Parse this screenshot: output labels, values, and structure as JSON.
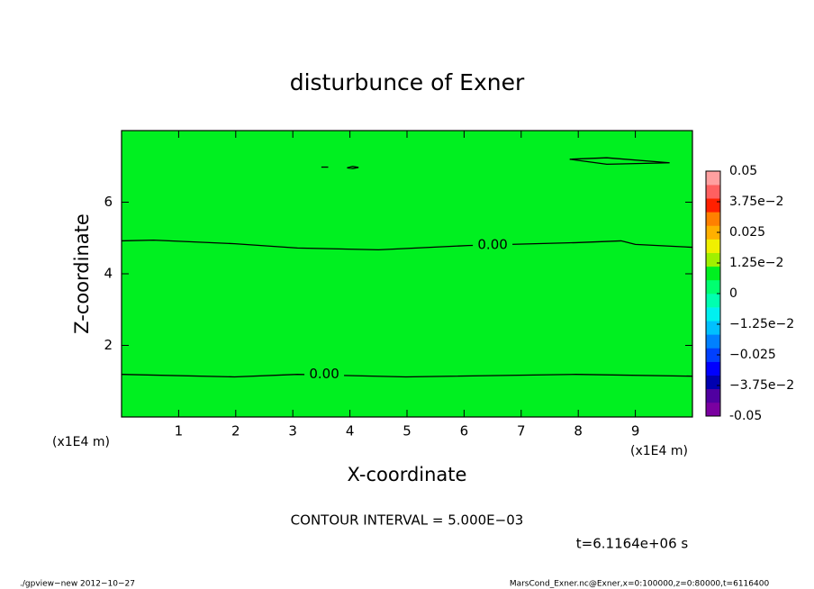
{
  "chart_data": {
    "type": "contour",
    "title": "disturbunce of Exner",
    "x_label": "X-coordinate",
    "y_label": "Z-coordinate",
    "x_unit_label": "(x1E4 m)",
    "xlim": [
      0,
      10
    ],
    "ylim": [
      0,
      8
    ],
    "xticks": [
      1,
      2,
      3,
      4,
      5,
      6,
      7,
      8,
      9
    ],
    "yticks": [
      2,
      4,
      6
    ],
    "field_color": "#00f020",
    "contours": [
      {
        "label": "0.00",
        "label_x": 6.5,
        "label_y": 4.8,
        "x": [
          0,
          0.56,
          1.98,
          3.08,
          4.5,
          6.07,
          7.96,
          8.75,
          9.0,
          10
        ],
        "y": [
          4.92,
          4.94,
          4.84,
          4.72,
          4.67,
          4.79,
          4.87,
          4.92,
          4.82,
          4.74
        ]
      },
      {
        "label": "0.00",
        "label_x": 3.55,
        "label_y": 1.2,
        "x": [
          0,
          1.98,
          3.08,
          4.98,
          7.96,
          10
        ],
        "y": [
          1.19,
          1.12,
          1.19,
          1.12,
          1.19,
          1.14
        ]
      },
      {
        "x": [
          7.85,
          8.5,
          9.6,
          8.5,
          7.85
        ],
        "y": [
          7.2,
          7.24,
          7.1,
          7.06,
          7.2
        ]
      },
      {
        "x": [
          3.5,
          3.62
        ],
        "y": [
          6.98,
          6.98
        ]
      },
      {
        "x": [
          3.95,
          4.05,
          4.15,
          4.05,
          3.95
        ],
        "y": [
          6.96,
          7.0,
          6.97,
          6.94,
          6.96
        ]
      }
    ],
    "colorbar": {
      "clim": [
        -0.05,
        0.05
      ],
      "colors": [
        "#7a00a0",
        "#5000a0",
        "#0000b0",
        "#0000ff",
        "#0040ff",
        "#0080ff",
        "#00c0ff",
        "#00f0f0",
        "#00ffb0",
        "#00ff70",
        "#00f020",
        "#a0f000",
        "#f0f000",
        "#ffb000",
        "#ff8000",
        "#ff2000",
        "#ff6060",
        "#ffa0a0"
      ],
      "ticks": [
        -0.05,
        {
          "value": -0.0375,
          "label": "−3.75e−2"
        },
        {
          "value": -0.025,
          "label": "−0.025"
        },
        {
          "value": -0.0125,
          "label": "−1.25e−2"
        },
        0,
        {
          "value": 0.0125,
          "label": "1.25e−2"
        },
        0.025,
        {
          "value": 0.0375,
          "label": "3.75e−2"
        },
        0.05
      ]
    },
    "contour_interval": "CONTOUR INTERVAL = 5.000E−03",
    "time_label": "t=6.1164e+06 s",
    "footer_left": "./gpview−new  2012−10−27",
    "footer_right": "MarsCond_Exner.nc@Exner,x=0:100000,z=0:80000,t=6116400"
  }
}
